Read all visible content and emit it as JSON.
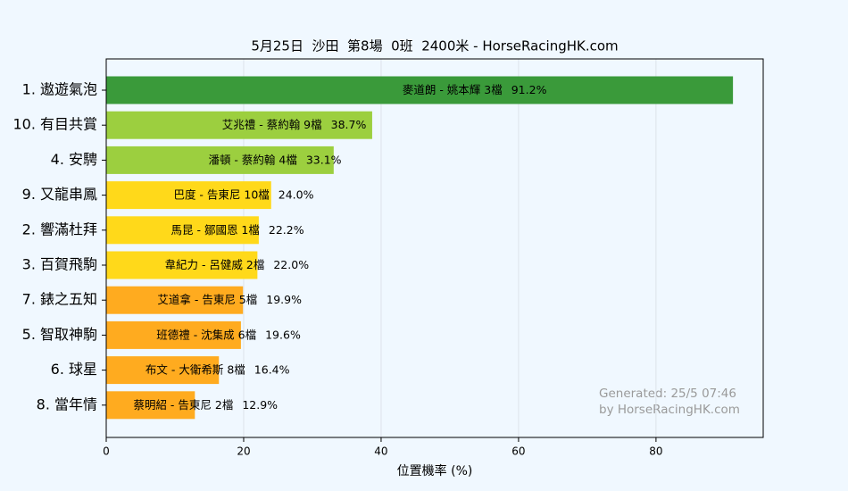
{
  "chart_data": {
    "type": "bar",
    "orientation": "horizontal",
    "title": "5月25日  沙田  第8場  0班  2400米 - HorseRacingHK.com",
    "x_label": "位置機率 (%)",
    "categories": [
      "1. 遨遊氣泡",
      "10. 有目共賞",
      "4. 安騁",
      "9. 又龍串鳳",
      "2. 響滿杜拜",
      "3. 百賀飛駒",
      "7. 錶之五知",
      "5. 智取神駒",
      "6. 球星",
      "8. 當年情"
    ],
    "values": [
      91.2,
      38.7,
      33.1,
      24.0,
      22.2,
      22.0,
      19.9,
      19.6,
      16.4,
      12.9
    ],
    "value_labels": [
      "91.2%",
      "38.7%",
      "33.1%",
      "24.0%",
      "22.2%",
      "22.0%",
      "19.9%",
      "19.6%",
      "16.4%",
      "12.9%"
    ],
    "bar_texts": [
      "麥道朗 - 姚本輝 3檔",
      "艾兆禮 - 蔡約翰 9檔",
      "潘頓 - 蔡約翰 4檔",
      "巴度 - 告東尼 10檔",
      "馬昆 - 鄒國恩 1檔",
      "韋紀力 - 呂健威 2檔",
      "艾道拿 - 告東尼 5檔",
      "班德禮 - 沈集成 6檔",
      "布文 - 大衛希斯 8檔",
      "蔡明紹 - 告東尼 2檔"
    ],
    "colors": [
      "#3a9a3a",
      "#9ccf3f",
      "#9ccf3f",
      "#ffd91a",
      "#ffd91a",
      "#ffd91a",
      "#ffab1f",
      "#ffab1f",
      "#ffab1f",
      "#ffab1f"
    ],
    "xlim": [
      0,
      95.6
    ],
    "xticks": [
      0,
      20,
      40,
      60,
      80
    ],
    "grid": true,
    "annotations": [
      "Generated: 25/5 07:46",
      "by HorseRacingHK.com"
    ]
  }
}
